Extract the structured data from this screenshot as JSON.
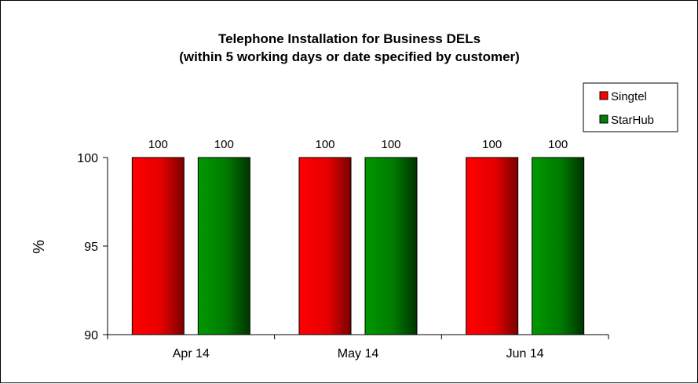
{
  "chart_data": {
    "type": "bar",
    "title": "Telephone Installation for Business DELs",
    "subtitle": "(within 5 working days or date specified by customer)",
    "xlabel": "",
    "ylabel": "%",
    "categories": [
      "Apr 14",
      "May 14",
      "Jun 14"
    ],
    "series": [
      {
        "name": "Singtel",
        "values": [
          100,
          100,
          100
        ],
        "color": "#ff0000"
      },
      {
        "name": "StarHub",
        "values": [
          100,
          100,
          100
        ],
        "color": "#008000"
      }
    ],
    "data_labels": [
      [
        "100",
        "100",
        "100"
      ],
      [
        "100",
        "100",
        "100"
      ]
    ],
    "ylim": [
      90,
      100
    ],
    "yticks": [
      90,
      95,
      100
    ],
    "ytick_labels": [
      "90",
      "95",
      "100"
    ],
    "grid": false,
    "legend_position": "top-right"
  }
}
